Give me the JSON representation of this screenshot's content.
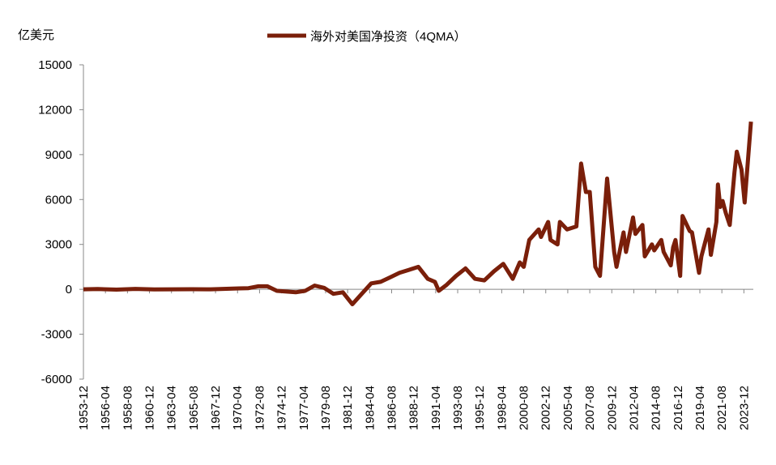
{
  "chart_data": {
    "type": "line",
    "ylabel": "亿美元",
    "series": [
      {
        "name": "海外对美国净投资（4QMA）",
        "color": "#7a1f0a",
        "x": [
          "1953-12",
          "1955-06",
          "1957-06",
          "1959-06",
          "1961-06",
          "1963-06",
          "1965-06",
          "1967-06",
          "1969-06",
          "1970-06",
          "1971-06",
          "1972-06",
          "1973-06",
          "1974-06",
          "1975-06",
          "1976-06",
          "1977-06",
          "1978-06",
          "1979-06",
          "1980-06",
          "1981-06",
          "1982-06",
          "1983-06",
          "1984-06",
          "1985-06",
          "1986-06",
          "1987-06",
          "1988-06",
          "1989-06",
          "1990-06",
          "1991-03",
          "1991-08",
          "1992-06",
          "1993-06",
          "1994-06",
          "1995-06",
          "1996-06",
          "1997-06",
          "1998-06",
          "1999-06",
          "2000-03",
          "2000-08",
          "2001-03",
          "2002-03",
          "2002-06",
          "2003-03",
          "2003-06",
          "2004-03",
          "2004-06",
          "2005-03",
          "2006-03",
          "2006-09",
          "2007-03",
          "2007-08",
          "2008-03",
          "2008-09",
          "2009-06",
          "2010-03",
          "2010-06",
          "2011-03",
          "2011-06",
          "2012-03",
          "2012-06",
          "2013-03",
          "2013-06",
          "2014-03",
          "2014-06",
          "2015-03",
          "2015-06",
          "2016-03",
          "2016-06",
          "2016-09",
          "2017-03",
          "2017-06",
          "2018-03",
          "2018-06",
          "2019-03",
          "2019-06",
          "2020-03",
          "2020-06",
          "2021-01",
          "2021-03",
          "2021-06",
          "2021-09",
          "2022-01",
          "2022-06",
          "2022-12",
          "2023-03",
          "2023-09",
          "2024-01",
          "2024-09"
        ],
        "values": [
          0,
          20,
          -20,
          30,
          -10,
          0,
          10,
          0,
          40,
          60,
          80,
          200,
          200,
          -100,
          -150,
          -200,
          -100,
          250,
          100,
          -300,
          -200,
          -1000,
          -300,
          400,
          500,
          800,
          1100,
          1300,
          1500,
          700,
          500,
          -100,
          300,
          900,
          1400,
          700,
          600,
          1200,
          1700,
          700,
          1800,
          1500,
          3300,
          4000,
          3500,
          4500,
          3300,
          3000,
          4500,
          4000,
          4200,
          8400,
          6500,
          6500,
          1500,
          900,
          7400,
          2500,
          1500,
          3800,
          2500,
          4800,
          3700,
          4300,
          2200,
          3000,
          2600,
          3300,
          2500,
          1600,
          2800,
          3300,
          900,
          4900,
          3900,
          3800,
          1100,
          2200,
          4000,
          2300,
          4500,
          7000,
          5500,
          5900,
          5100,
          4300,
          7800,
          9200,
          8000,
          5800,
          11200
        ]
      }
    ],
    "xlim": [
      "1953-12",
      "2024-12"
    ],
    "xticks": [
      "1953-12",
      "1956-04",
      "1958-08",
      "1960-12",
      "1963-04",
      "1965-08",
      "1967-12",
      "1970-04",
      "1972-08",
      "1974-12",
      "1977-04",
      "1979-08",
      "1981-12",
      "1984-04",
      "1986-08",
      "1988-12",
      "1991-04",
      "1993-08",
      "1995-12",
      "1998-04",
      "2000-08",
      "2002-12",
      "2005-04",
      "2007-08",
      "2009-12",
      "2012-04",
      "2014-08",
      "2016-12",
      "2019-04",
      "2021-08",
      "2023-12"
    ],
    "ylim": [
      -6000,
      15000
    ],
    "yticks": [
      -6000,
      -3000,
      0,
      3000,
      6000,
      9000,
      12000,
      15000
    ],
    "grid": false
  }
}
